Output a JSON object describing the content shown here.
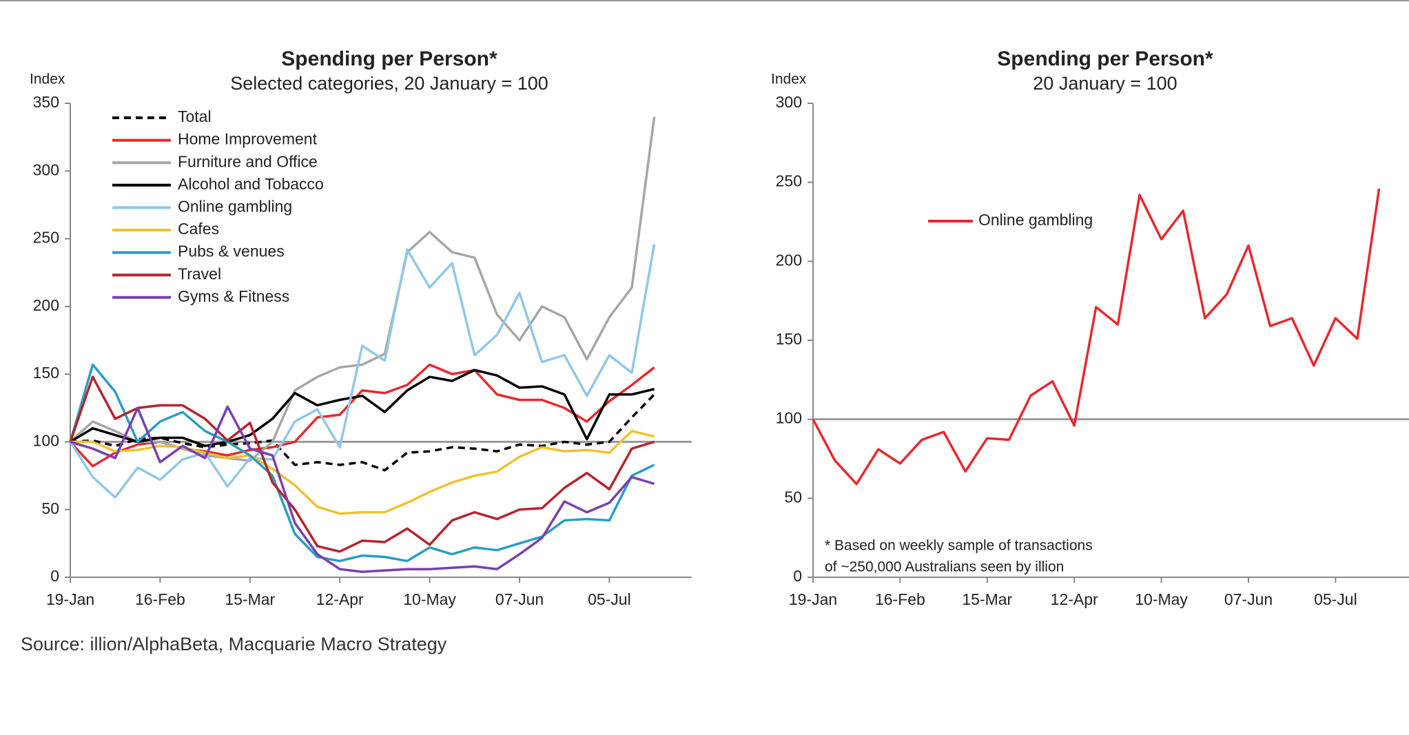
{
  "chart_data": [
    {
      "type": "line",
      "title": "Spending per Person*",
      "subtitle": "Selected categories, 20 January = 100",
      "y_label": "Index",
      "categories": [
        "19-Jan",
        null,
        null,
        null,
        "16-Feb",
        null,
        null,
        null,
        "15-Mar",
        null,
        null,
        null,
        "12-Apr",
        null,
        null,
        null,
        "10-May",
        null,
        null,
        null,
        "07-Jun",
        null,
        null,
        null,
        "05-Jul",
        null,
        null
      ],
      "ylim": [
        0,
        350
      ],
      "yticks": [
        0,
        50,
        100,
        150,
        200,
        250,
        300,
        350
      ],
      "reference_line": 100,
      "legend": "upper left",
      "series": [
        {
          "name": "Total",
          "color": "#000000",
          "dashed": true,
          "values": [
            100,
            101,
            97,
            102,
            103,
            99,
            96,
            98,
            99,
            101,
            83,
            85,
            83,
            85,
            79,
            92,
            93,
            96,
            95,
            93,
            98,
            97,
            100,
            98,
            100,
            118,
            135
          ]
        },
        {
          "name": "Home Improvement",
          "color": "#e8282e",
          "values": [
            100,
            82,
            92,
            98,
            100,
            95,
            93,
            90,
            94,
            96,
            100,
            118,
            120,
            138,
            136,
            142,
            157,
            150,
            153,
            135,
            131,
            131,
            125,
            115,
            130,
            142,
            155
          ]
        },
        {
          "name": "Furniture and Office",
          "color": "#a6a6a6",
          "values": [
            100,
            115,
            108,
            100,
            100,
            95,
            90,
            88,
            86,
            100,
            138,
            148,
            155,
            157,
            165,
            240,
            255,
            240,
            236,
            194,
            175,
            200,
            192,
            161,
            192,
            214,
            340
          ]
        },
        {
          "name": "Alcohol and Tobacco",
          "color": "#000000",
          "values": [
            100,
            110,
            105,
            100,
            103,
            103,
            97,
            100,
            105,
            117,
            136,
            127,
            131,
            134,
            122,
            138,
            148,
            145,
            153,
            149,
            140,
            141,
            135,
            102,
            135,
            135,
            139
          ]
        },
        {
          "name": "Online gambling",
          "color": "#8ec8ec",
          "values": [
            100,
            74,
            59,
            81,
            72,
            87,
            92,
            67,
            88,
            87,
            115,
            124,
            96,
            171,
            160,
            242,
            214,
            232,
            164,
            179,
            210,
            159,
            164,
            134,
            164,
            151,
            246
          ]
        },
        {
          "name": "Cafes",
          "color": "#f2c02e",
          "values": [
            100,
            100,
            93,
            94,
            97,
            96,
            92,
            88,
            90,
            80,
            68,
            52,
            47,
            48,
            48,
            55,
            63,
            70,
            75,
            78,
            89,
            96,
            93,
            94,
            92,
            108,
            104
          ]
        },
        {
          "name": "Pubs & venues",
          "color": "#2a9cc4",
          "values": [
            100,
            157,
            137,
            100,
            115,
            122,
            108,
            100,
            90,
            75,
            32,
            15,
            12,
            16,
            15,
            12,
            22,
            17,
            22,
            20,
            25,
            30,
            42,
            43,
            42,
            75,
            83
          ]
        },
        {
          "name": "Travel",
          "color": "#b8232e",
          "values": [
            100,
            148,
            117,
            125,
            127,
            127,
            117,
            101,
            114,
            70,
            50,
            23,
            19,
            27,
            26,
            36,
            24,
            42,
            48,
            43,
            50,
            51,
            66,
            77,
            65,
            95,
            100
          ]
        },
        {
          "name": "Gyms & Fitness",
          "color": "#7a3fb0",
          "values": [
            100,
            95,
            88,
            125,
            85,
            97,
            88,
            126,
            95,
            90,
            40,
            17,
            6,
            4,
            5,
            6,
            6,
            7,
            8,
            6,
            17,
            29,
            56,
            48,
            55,
            74,
            69
          ]
        }
      ]
    },
    {
      "type": "line",
      "title": "Spending per Person*",
      "subtitle": "20 January = 100",
      "y_label": "Index",
      "categories": [
        "19-Jan",
        null,
        null,
        null,
        "16-Feb",
        null,
        null,
        null,
        "15-Mar",
        null,
        null,
        null,
        "12-Apr",
        null,
        null,
        null,
        "10-May",
        null,
        null,
        null,
        "07-Jun",
        null,
        null,
        null,
        "05-Jul",
        null,
        null
      ],
      "ylim": [
        0,
        300
      ],
      "yticks": [
        0,
        50,
        100,
        150,
        200,
        250,
        300
      ],
      "reference_line": 100,
      "legend": "upper left",
      "series": [
        {
          "name": "Online gambling",
          "color": "#e8282e",
          "values": [
            100,
            74,
            59,
            81,
            72,
            87,
            92,
            67,
            88,
            87,
            115,
            124,
            96,
            171,
            160,
            242,
            214,
            232,
            164,
            179,
            210,
            159,
            164,
            134,
            164,
            151,
            246
          ]
        }
      ],
      "notes": [
        "* Based on weekly sample of transactions",
        "of ~250,000 Australians seen by illion"
      ]
    }
  ],
  "source": "Source: illion/AlphaBeta, Macquarie Macro Strategy"
}
